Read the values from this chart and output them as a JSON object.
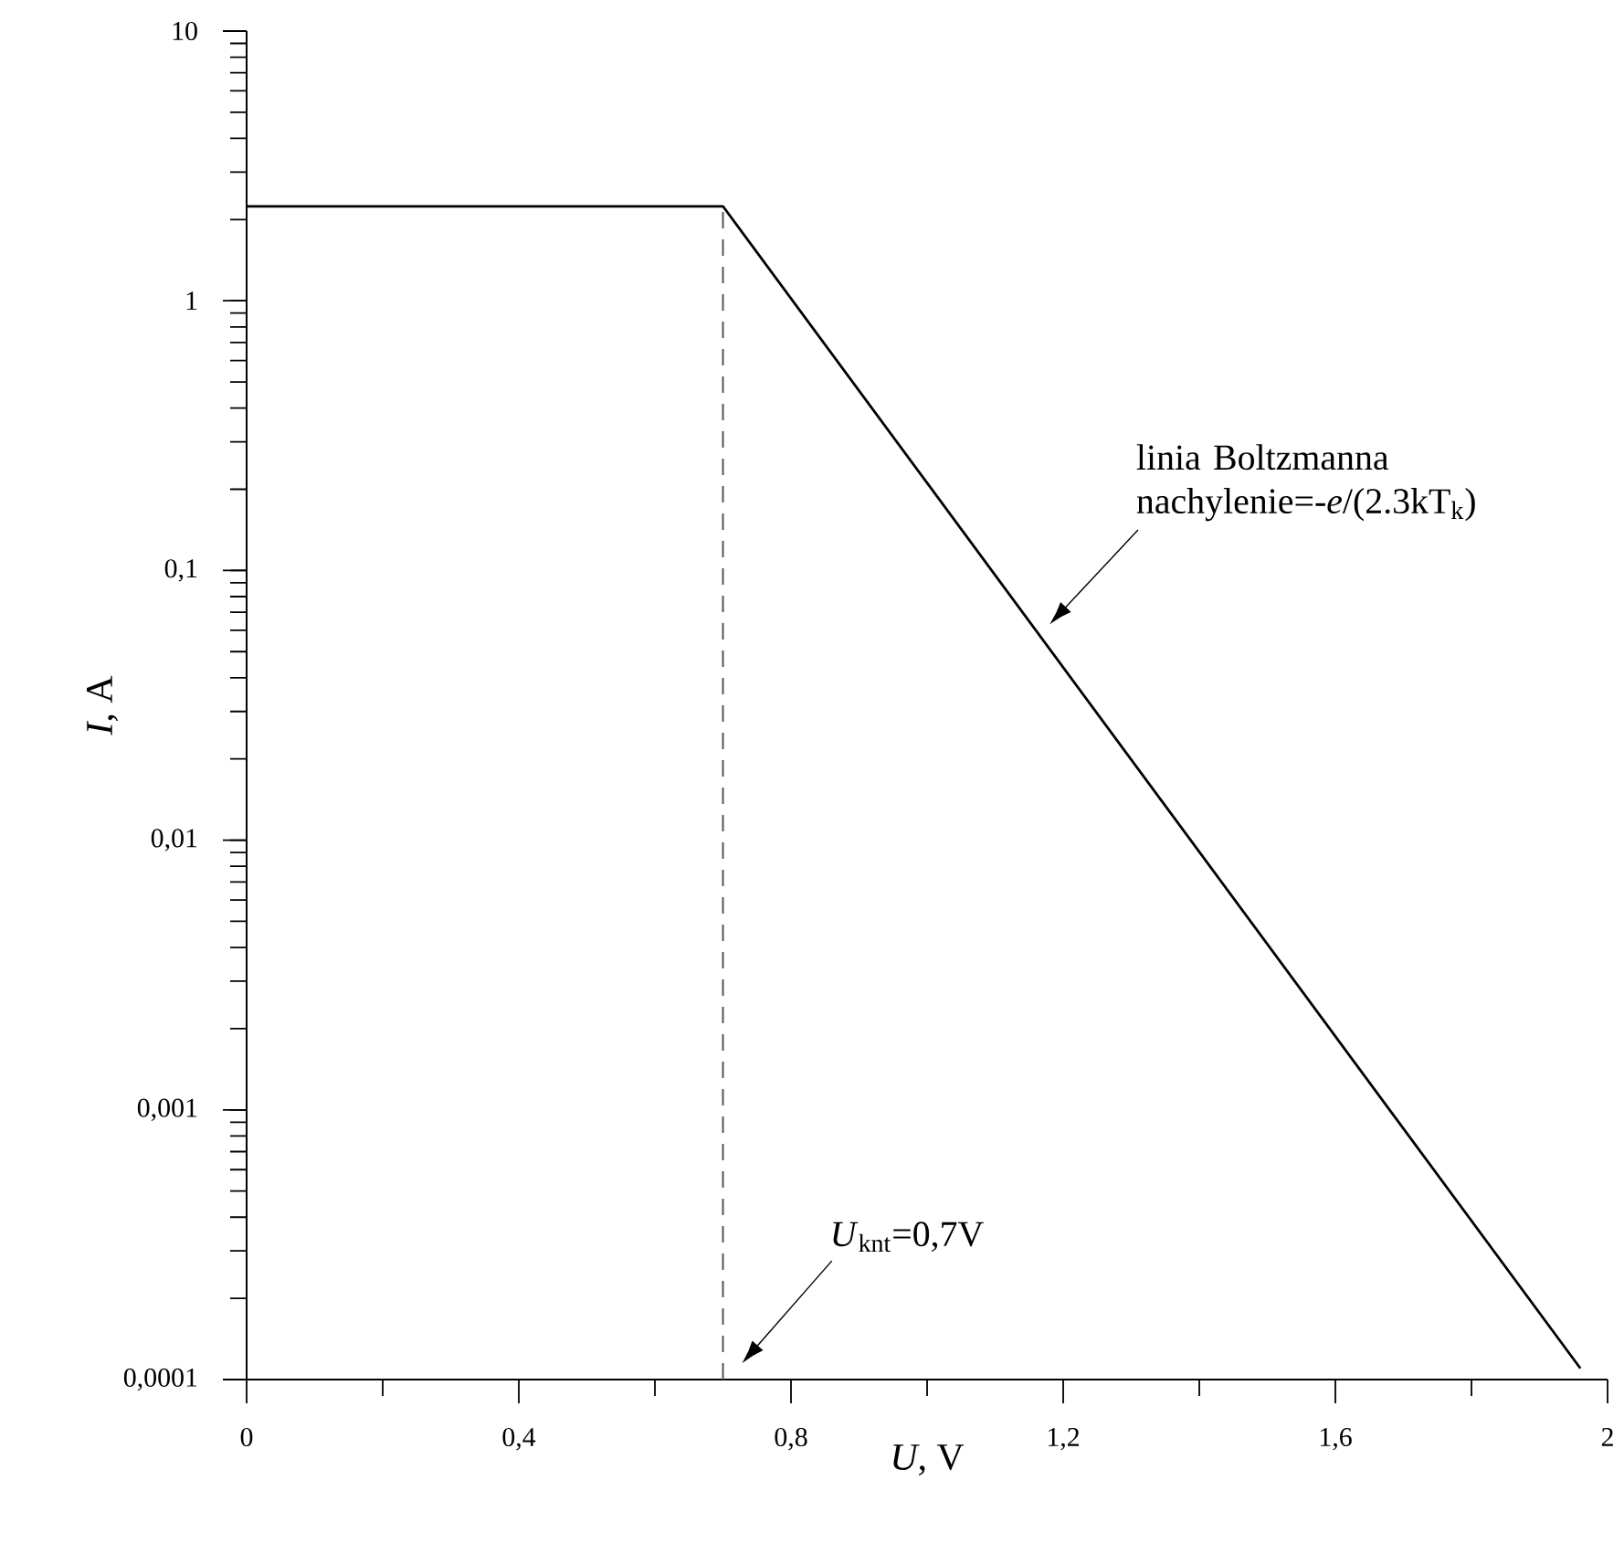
{
  "chart_data": {
    "type": "line",
    "xlabel": "*U*, V",
    "ylabel": "*I*, A",
    "log": "y",
    "x": [
      0,
      0.7,
      1.96
    ],
    "series": [
      {
        "color": "#000000",
        "values": [
          2.24,
          2.24,
          0.00011
        ]
      }
    ],
    "xlim": [
      0,
      2
    ],
    "ylim": [
      0.0001,
      10
    ],
    "xticks": [
      0,
      {
        "value": 0.2,
        "label": null
      },
      {
        "value": 0.4,
        "label": "0,4"
      },
      {
        "value": 0.6,
        "label": null
      },
      {
        "value": 0.8,
        "label": "0,8"
      },
      {
        "value": 1.0,
        "label": null
      },
      {
        "value": 1.2,
        "label": "1,2"
      },
      {
        "value": 1.4,
        "label": null
      },
      {
        "value": 1.6,
        "label": "1,6"
      },
      {
        "value": 1.8,
        "label": null
      },
      2
    ],
    "yticks": [
      {
        "value": 0.0001,
        "label": "0,0001"
      },
      {
        "value": 0.001,
        "label": "0,001"
      },
      {
        "value": 0.01,
        "label": "0,01"
      },
      {
        "value": 0.1,
        "label": "0,1"
      },
      1,
      10
    ],
    "ref_lines": [
      {
        "axis": "x",
        "value": 0.7,
        "line_style": "dashed",
        "color": "#555555"
      }
    ],
    "annotations": [
      "*U*$_{knt}$=0,7V",
      "linia Boltzmanna nachylenie=-*e*/(2.3kT$_{k}$)"
    ],
    "grid": false,
    "marker": "none",
    "line_style": "solid"
  }
}
